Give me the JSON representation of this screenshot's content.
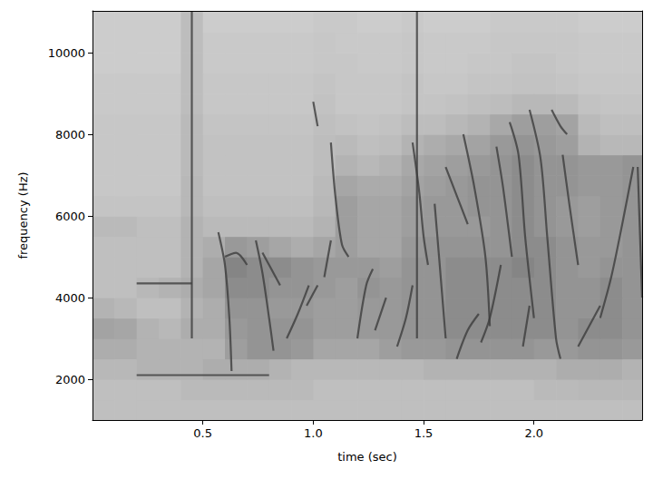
{
  "chart_data": {
    "type": "spectrogram",
    "x_label": "time (sec)",
    "y_label": "frequency (Hz)",
    "xlim": [
      0,
      2.49
    ],
    "ylim": [
      1000,
      11025
    ],
    "xticks": [
      0.5,
      {
        "value": 1.0,
        "label": "1.0"
      },
      1.5,
      {
        "value": 2.0,
        "label": "2.0"
      }
    ],
    "yticks": [
      2000,
      4000,
      6000,
      8000,
      10000
    ],
    "grid": false,
    "color": "#3c3c3c",
    "time_edges": [
      0,
      0.1,
      0.2,
      0.3,
      0.4,
      0.5,
      0.6,
      0.7,
      0.8,
      0.9,
      1.0,
      1.1,
      1.2,
      1.3,
      1.4,
      1.5,
      1.6,
      1.7,
      1.8,
      1.9,
      2.0,
      2.1,
      2.2,
      2.3,
      2.4,
      2.49
    ],
    "freq_edges": [
      1000,
      1500,
      2000,
      2500,
      3000,
      3500,
      4000,
      4500,
      5000,
      5500,
      6000,
      6500,
      7000,
      7500,
      8000,
      8500,
      9000,
      9500,
      10000,
      10500,
      11025
    ],
    "cells": [
      [
        0.25,
        0.25,
        0.25,
        0.25,
        0.25,
        0.25,
        0.25,
        0.25,
        0.25,
        0.25,
        0.25,
        0.25,
        0.25,
        0.25,
        0.25,
        0.25,
        0.25,
        0.25,
        0.25,
        0.25,
        0.25,
        0.25,
        0.25,
        0.25,
        0.25
      ],
      [
        0.25,
        0.25,
        0.25,
        0.25,
        0.27,
        0.27,
        0.27,
        0.27,
        0.27,
        0.27,
        0.25,
        0.25,
        0.25,
        0.25,
        0.25,
        0.25,
        0.25,
        0.25,
        0.25,
        0.25,
        0.27,
        0.27,
        0.28,
        0.28,
        0.28
      ],
      [
        0.28,
        0.28,
        0.3,
        0.3,
        0.3,
        0.32,
        0.32,
        0.32,
        0.3,
        0.28,
        0.28,
        0.28,
        0.28,
        0.28,
        0.28,
        0.3,
        0.3,
        0.3,
        0.3,
        0.3,
        0.3,
        0.32,
        0.32,
        0.32,
        0.3
      ],
      [
        0.32,
        0.32,
        0.3,
        0.3,
        0.3,
        0.3,
        0.38,
        0.42,
        0.42,
        0.4,
        0.35,
        0.35,
        0.35,
        0.38,
        0.4,
        0.4,
        0.42,
        0.42,
        0.42,
        0.42,
        0.4,
        0.4,
        0.42,
        0.42,
        0.4
      ],
      [
        0.36,
        0.35,
        0.3,
        0.28,
        0.32,
        0.32,
        0.4,
        0.42,
        0.42,
        0.42,
        0.38,
        0.38,
        0.4,
        0.4,
        0.42,
        0.42,
        0.45,
        0.45,
        0.45,
        0.45,
        0.45,
        0.42,
        0.45,
        0.45,
        0.42
      ],
      [
        0.3,
        0.28,
        0.25,
        0.25,
        0.3,
        0.32,
        0.42,
        0.42,
        0.4,
        0.4,
        0.38,
        0.38,
        0.4,
        0.4,
        0.42,
        0.42,
        0.45,
        0.45,
        0.45,
        0.45,
        0.45,
        0.42,
        0.42,
        0.45,
        0.42
      ],
      [
        0.25,
        0.25,
        0.28,
        0.3,
        0.32,
        0.35,
        0.45,
        0.45,
        0.42,
        0.42,
        0.4,
        0.38,
        0.42,
        0.4,
        0.42,
        0.42,
        0.45,
        0.45,
        0.45,
        0.45,
        0.45,
        0.42,
        0.42,
        0.45,
        0.42
      ],
      [
        0.25,
        0.25,
        0.25,
        0.25,
        0.3,
        0.35,
        0.48,
        0.45,
        0.45,
        0.42,
        0.4,
        0.4,
        0.4,
        0.38,
        0.42,
        0.42,
        0.45,
        0.45,
        0.45,
        0.48,
        0.45,
        0.42,
        0.4,
        0.42,
        0.42
      ],
      [
        0.25,
        0.25,
        0.25,
        0.25,
        0.3,
        0.32,
        0.4,
        0.38,
        0.35,
        0.32,
        0.35,
        0.38,
        0.35,
        0.35,
        0.4,
        0.42,
        0.42,
        0.42,
        0.42,
        0.45,
        0.45,
        0.42,
        0.4,
        0.4,
        0.42
      ],
      [
        0.27,
        0.27,
        0.25,
        0.25,
        0.3,
        0.27,
        0.27,
        0.27,
        0.27,
        0.27,
        0.3,
        0.38,
        0.35,
        0.35,
        0.38,
        0.4,
        0.4,
        0.4,
        0.42,
        0.45,
        0.42,
        0.4,
        0.38,
        0.4,
        0.42
      ],
      [
        0.23,
        0.23,
        0.23,
        0.23,
        0.28,
        0.25,
        0.25,
        0.25,
        0.25,
        0.25,
        0.28,
        0.38,
        0.35,
        0.35,
        0.38,
        0.4,
        0.4,
        0.42,
        0.42,
        0.45,
        0.42,
        0.4,
        0.38,
        0.4,
        0.42
      ],
      [
        0.22,
        0.22,
        0.22,
        0.22,
        0.28,
        0.24,
        0.24,
        0.24,
        0.24,
        0.24,
        0.27,
        0.35,
        0.33,
        0.33,
        0.36,
        0.38,
        0.4,
        0.42,
        0.42,
        0.45,
        0.42,
        0.42,
        0.4,
        0.4,
        0.42
      ],
      [
        0.22,
        0.22,
        0.22,
        0.22,
        0.27,
        0.24,
        0.24,
        0.24,
        0.24,
        0.24,
        0.26,
        0.3,
        0.28,
        0.3,
        0.34,
        0.36,
        0.38,
        0.4,
        0.42,
        0.45,
        0.42,
        0.42,
        0.4,
        0.4,
        0.42
      ],
      [
        0.22,
        0.22,
        0.22,
        0.22,
        0.27,
        0.24,
        0.24,
        0.24,
        0.24,
        0.24,
        0.26,
        0.27,
        0.25,
        0.26,
        0.3,
        0.32,
        0.34,
        0.36,
        0.4,
        0.42,
        0.4,
        0.38,
        0.3,
        0.28,
        0.28
      ],
      [
        0.22,
        0.22,
        0.22,
        0.22,
        0.27,
        0.23,
        0.23,
        0.23,
        0.23,
        0.23,
        0.25,
        0.24,
        0.23,
        0.24,
        0.26,
        0.26,
        0.28,
        0.3,
        0.34,
        0.38,
        0.38,
        0.36,
        0.27,
        0.25,
        0.25
      ],
      [
        0.21,
        0.21,
        0.21,
        0.21,
        0.26,
        0.22,
        0.22,
        0.22,
        0.22,
        0.22,
        0.24,
        0.22,
        0.22,
        0.22,
        0.23,
        0.23,
        0.24,
        0.25,
        0.26,
        0.28,
        0.28,
        0.27,
        0.24,
        0.23,
        0.23
      ],
      [
        0.21,
        0.21,
        0.21,
        0.21,
        0.26,
        0.22,
        0.22,
        0.22,
        0.22,
        0.22,
        0.23,
        0.22,
        0.22,
        0.22,
        0.23,
        0.22,
        0.22,
        0.23,
        0.23,
        0.24,
        0.24,
        0.23,
        0.22,
        0.22,
        0.22
      ],
      [
        0.2,
        0.2,
        0.2,
        0.2,
        0.26,
        0.21,
        0.21,
        0.21,
        0.21,
        0.21,
        0.22,
        0.22,
        0.21,
        0.21,
        0.22,
        0.21,
        0.21,
        0.22,
        0.22,
        0.23,
        0.23,
        0.22,
        0.21,
        0.21,
        0.21
      ],
      [
        0.2,
        0.2,
        0.2,
        0.2,
        0.26,
        0.21,
        0.21,
        0.21,
        0.21,
        0.21,
        0.22,
        0.21,
        0.21,
        0.21,
        0.22,
        0.21,
        0.21,
        0.21,
        0.22,
        0.22,
        0.22,
        0.22,
        0.21,
        0.21,
        0.21
      ],
      [
        0.2,
        0.2,
        0.2,
        0.2,
        0.26,
        0.2,
        0.2,
        0.2,
        0.2,
        0.2,
        0.21,
        0.21,
        0.2,
        0.2,
        0.21,
        0.2,
        0.2,
        0.2,
        0.21,
        0.21,
        0.21,
        0.21,
        0.2,
        0.2,
        0.2
      ]
    ],
    "strokes": [
      [
        [
          0.45,
          11000
        ],
        [
          0.45,
          3000
        ]
      ],
      [
        [
          0.2,
          4350
        ],
        [
          0.45,
          4350
        ]
      ],
      [
        [
          0.2,
          2100
        ],
        [
          0.8,
          2100
        ]
      ],
      [
        [
          0.57,
          5600
        ],
        [
          0.6,
          4800
        ],
        [
          0.62,
          3500
        ],
        [
          0.63,
          2200
        ]
      ],
      [
        [
          0.6,
          5000
        ],
        [
          0.65,
          5100
        ],
        [
          0.7,
          4800
        ]
      ],
      [
        [
          0.74,
          5400
        ],
        [
          0.77,
          4600
        ],
        [
          0.8,
          3500
        ],
        [
          0.82,
          2700
        ]
      ],
      [
        [
          0.77,
          5100
        ],
        [
          0.8,
          4800
        ],
        [
          0.85,
          4300
        ]
      ],
      [
        [
          0.88,
          3000
        ],
        [
          0.93,
          3600
        ],
        [
          0.98,
          4300
        ]
      ],
      [
        [
          0.97,
          3800
        ],
        [
          1.02,
          4300
        ]
      ],
      [
        [
          1.05,
          4500
        ],
        [
          1.08,
          5400
        ]
      ],
      [
        [
          1.0,
          8800
        ],
        [
          1.02,
          8200
        ]
      ],
      [
        [
          1.08,
          7800
        ],
        [
          1.1,
          6500
        ],
        [
          1.13,
          5300
        ],
        [
          1.16,
          5000
        ]
      ],
      [
        [
          1.2,
          3000
        ],
        [
          1.24,
          4300
        ],
        [
          1.27,
          4700
        ]
      ],
      [
        [
          1.28,
          3200
        ],
        [
          1.33,
          4000
        ]
      ],
      [
        [
          1.38,
          2800
        ],
        [
          1.42,
          3500
        ],
        [
          1.45,
          4300
        ]
      ],
      [
        [
          1.47,
          11000
        ],
        [
          1.47,
          3000
        ]
      ],
      [
        [
          1.45,
          7800
        ],
        [
          1.48,
          6600
        ],
        [
          1.5,
          5500
        ],
        [
          1.52,
          4800
        ]
      ],
      [
        [
          1.55,
          6300
        ],
        [
          1.57,
          5000
        ],
        [
          1.6,
          3000
        ]
      ],
      [
        [
          1.6,
          7200
        ],
        [
          1.65,
          6500
        ],
        [
          1.7,
          5800
        ]
      ],
      [
        [
          1.65,
          2500
        ],
        [
          1.7,
          3200
        ],
        [
          1.75,
          3600
        ]
      ],
      [
        [
          1.68,
          8000
        ],
        [
          1.73,
          6700
        ],
        [
          1.78,
          5000
        ],
        [
          1.8,
          3300
        ]
      ],
      [
        [
          1.76,
          2900
        ],
        [
          1.8,
          3500
        ],
        [
          1.85,
          4800
        ]
      ],
      [
        [
          1.83,
          7700
        ],
        [
          1.86,
          6700
        ],
        [
          1.9,
          5000
        ]
      ],
      [
        [
          1.89,
          8300
        ],
        [
          1.93,
          7500
        ],
        [
          1.96,
          5500
        ],
        [
          2.0,
          3500
        ]
      ],
      [
        [
          1.95,
          2800
        ],
        [
          1.98,
          3800
        ]
      ],
      [
        [
          1.98,
          8600
        ],
        [
          2.03,
          7400
        ],
        [
          2.06,
          5500
        ],
        [
          2.1,
          3000
        ],
        [
          2.12,
          2500
        ]
      ],
      [
        [
          2.08,
          8600
        ],
        [
          2.12,
          8200
        ],
        [
          2.15,
          8000
        ]
      ],
      [
        [
          2.13,
          7500
        ],
        [
          2.16,
          6300
        ],
        [
          2.2,
          4800
        ]
      ],
      [
        [
          2.2,
          2800
        ],
        [
          2.25,
          3300
        ],
        [
          2.3,
          3800
        ]
      ],
      [
        [
          2.3,
          3500
        ],
        [
          2.35,
          4500
        ],
        [
          2.4,
          5800
        ],
        [
          2.45,
          7200
        ]
      ],
      [
        [
          2.47,
          7200
        ],
        [
          2.49,
          4000
        ]
      ]
    ]
  }
}
